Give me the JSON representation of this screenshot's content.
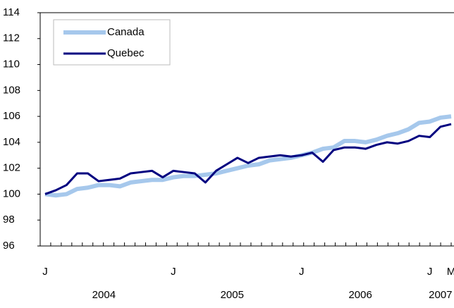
{
  "chart_data": {
    "type": "line",
    "categories": [
      "J",
      null,
      null,
      null,
      null,
      null,
      null,
      null,
      null,
      null,
      null,
      null,
      "J",
      null,
      null,
      null,
      null,
      null,
      null,
      null,
      null,
      null,
      null,
      null,
      "J",
      null,
      null,
      null,
      null,
      null,
      null,
      null,
      null,
      null,
      null,
      null,
      "J",
      null,
      "M"
    ],
    "x_groups": [
      "2004",
      "2005",
      "2006",
      "2007"
    ],
    "series": [
      {
        "name": "Canada",
        "color": "#a6c8ec",
        "values": [
          100.0,
          99.9,
          100.0,
          100.4,
          100.5,
          100.7,
          100.7,
          100.6,
          100.9,
          101.0,
          101.1,
          101.1,
          101.3,
          101.4,
          101.4,
          101.5,
          101.6,
          101.8,
          102.0,
          102.2,
          102.3,
          102.6,
          102.7,
          102.8,
          103.0,
          103.2,
          103.5,
          103.6,
          104.1,
          104.1,
          104.0,
          104.2,
          104.5,
          104.7,
          105.0,
          105.5,
          105.6,
          105.9,
          106.0
        ]
      },
      {
        "name": "Quebec",
        "color": "#000080",
        "values": [
          100.0,
          100.3,
          100.7,
          101.6,
          101.6,
          101.0,
          101.1,
          101.2,
          101.6,
          101.7,
          101.8,
          101.3,
          101.8,
          101.7,
          101.6,
          100.9,
          101.8,
          102.3,
          102.8,
          102.4,
          102.8,
          102.9,
          103.0,
          102.9,
          103.0,
          103.2,
          102.5,
          103.4,
          103.6,
          103.6,
          103.5,
          103.8,
          104.0,
          103.9,
          104.1,
          104.5,
          104.4,
          105.2,
          105.4
        ]
      }
    ],
    "ylim": [
      96,
      114
    ],
    "yticks": [
      96,
      98,
      100,
      102,
      104,
      106,
      108,
      110,
      112,
      114
    ],
    "grid": false
  }
}
